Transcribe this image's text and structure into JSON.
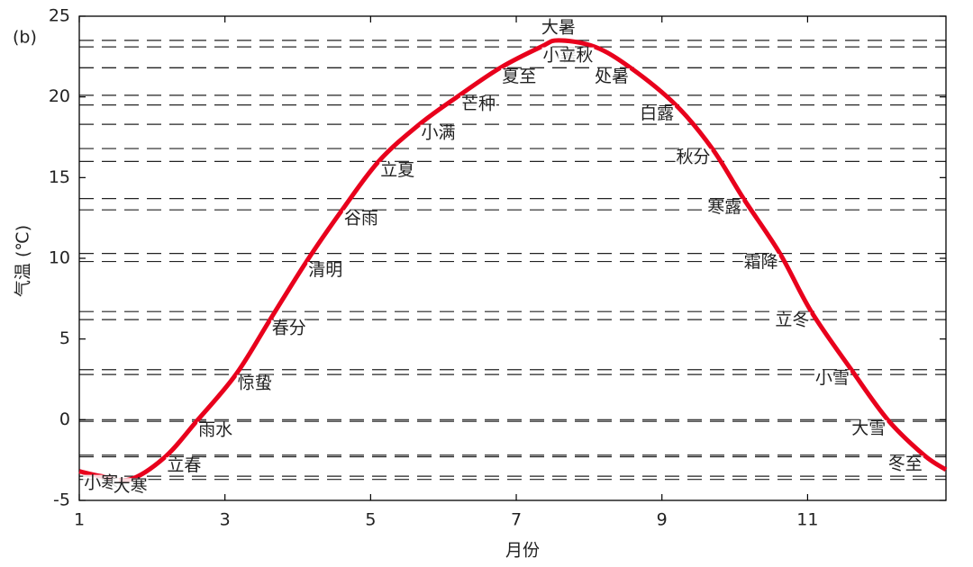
{
  "chart_data": {
    "type": "line",
    "panel_label": "(b)",
    "x_label": "月份",
    "y_label": "气温 (℃)",
    "xlim": [
      1,
      12.9
    ],
    "ylim": [
      -5,
      25
    ],
    "xticks": [
      1,
      3,
      5,
      7,
      9,
      11
    ],
    "yticks": [
      -5,
      0,
      5,
      10,
      15,
      20,
      25
    ],
    "series": [
      {
        "color": "#e8001c",
        "x": [
          1.0,
          1.3,
          1.7,
          2.18,
          2.61,
          3.15,
          3.62,
          4.12,
          4.61,
          5.11,
          5.67,
          6.22,
          6.78,
          7.34,
          7.58,
          8.08,
          8.57,
          9.19,
          9.69,
          10.12,
          10.62,
          11.05,
          11.6,
          12.1,
          12.6,
          12.9
        ],
        "values": [
          -3.2,
          -3.5,
          -3.7,
          -2.3,
          -0.1,
          2.8,
          6.2,
          9.8,
          13.0,
          16.0,
          18.3,
          20.1,
          21.8,
          23.1,
          23.5,
          23.1,
          21.8,
          19.5,
          16.8,
          13.7,
          10.3,
          6.7,
          3.1,
          0.0,
          -2.2,
          -3.1
        ],
        "point_labels": [
          null,
          "小寒",
          "大寒",
          "立春",
          "雨水",
          "惊蛰",
          "春分",
          "清明",
          "谷雨",
          "立夏",
          "小满",
          "芒种",
          "夏至",
          "小暑",
          "大暑",
          "立秋",
          "处暑",
          "白露",
          "秋分",
          "寒露",
          "霜降",
          "立冬",
          "小雪",
          "大雪",
          "冬至",
          null
        ]
      }
    ]
  }
}
